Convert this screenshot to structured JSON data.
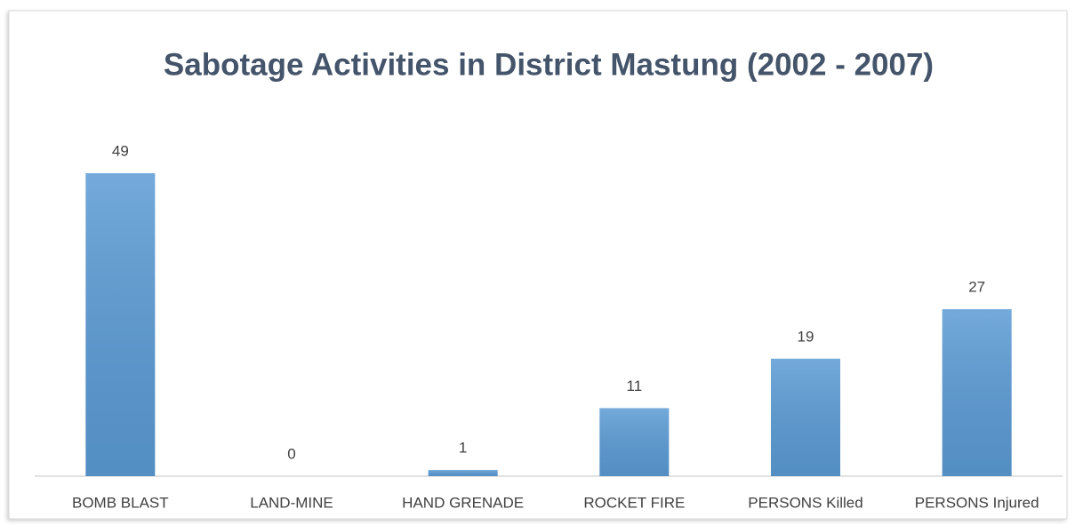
{
  "chart_data": {
    "type": "bar",
    "title": "Sabotage Activities in District Mastung (2002 - 2007)",
    "categories": [
      "BOMB BLAST",
      "LAND-MINE",
      "HAND GRENADE",
      "ROCKET FIRE",
      "PERSONS Killed",
      "PERSONS Injured"
    ],
    "values": [
      49,
      0,
      1,
      11,
      19,
      27
    ],
    "color": "#5b9bd5"
  }
}
